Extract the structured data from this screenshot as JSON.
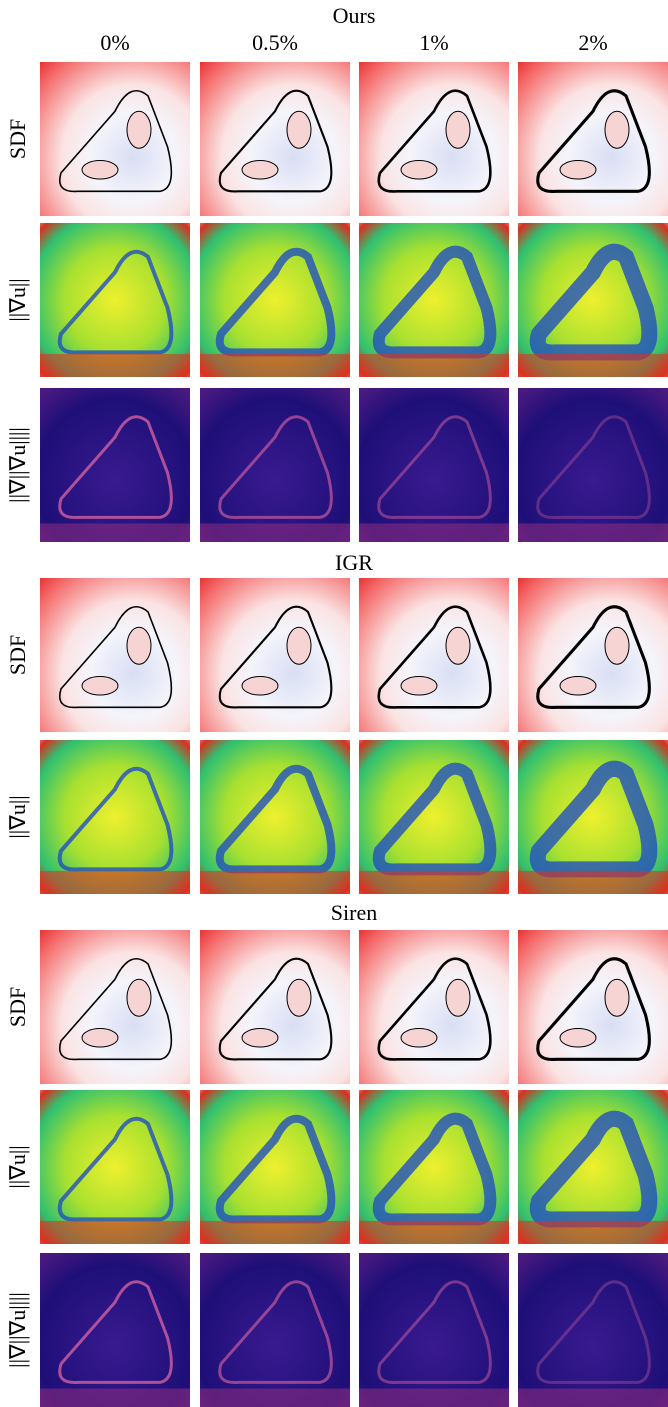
{
  "columns": [
    "0%",
    "0.5%",
    "1%",
    "2%"
  ],
  "sections": [
    {
      "title": "Ours",
      "rows": [
        "SDF",
        "||∇u||",
        "||∇||∇u||||"
      ]
    },
    {
      "title": "IGR",
      "rows": [
        "SDF",
        "||∇u||"
      ]
    },
    {
      "title": "Siren",
      "rows": [
        "SDF",
        "||∇u||",
        "||∇||∇u||||"
      ]
    }
  ]
}
